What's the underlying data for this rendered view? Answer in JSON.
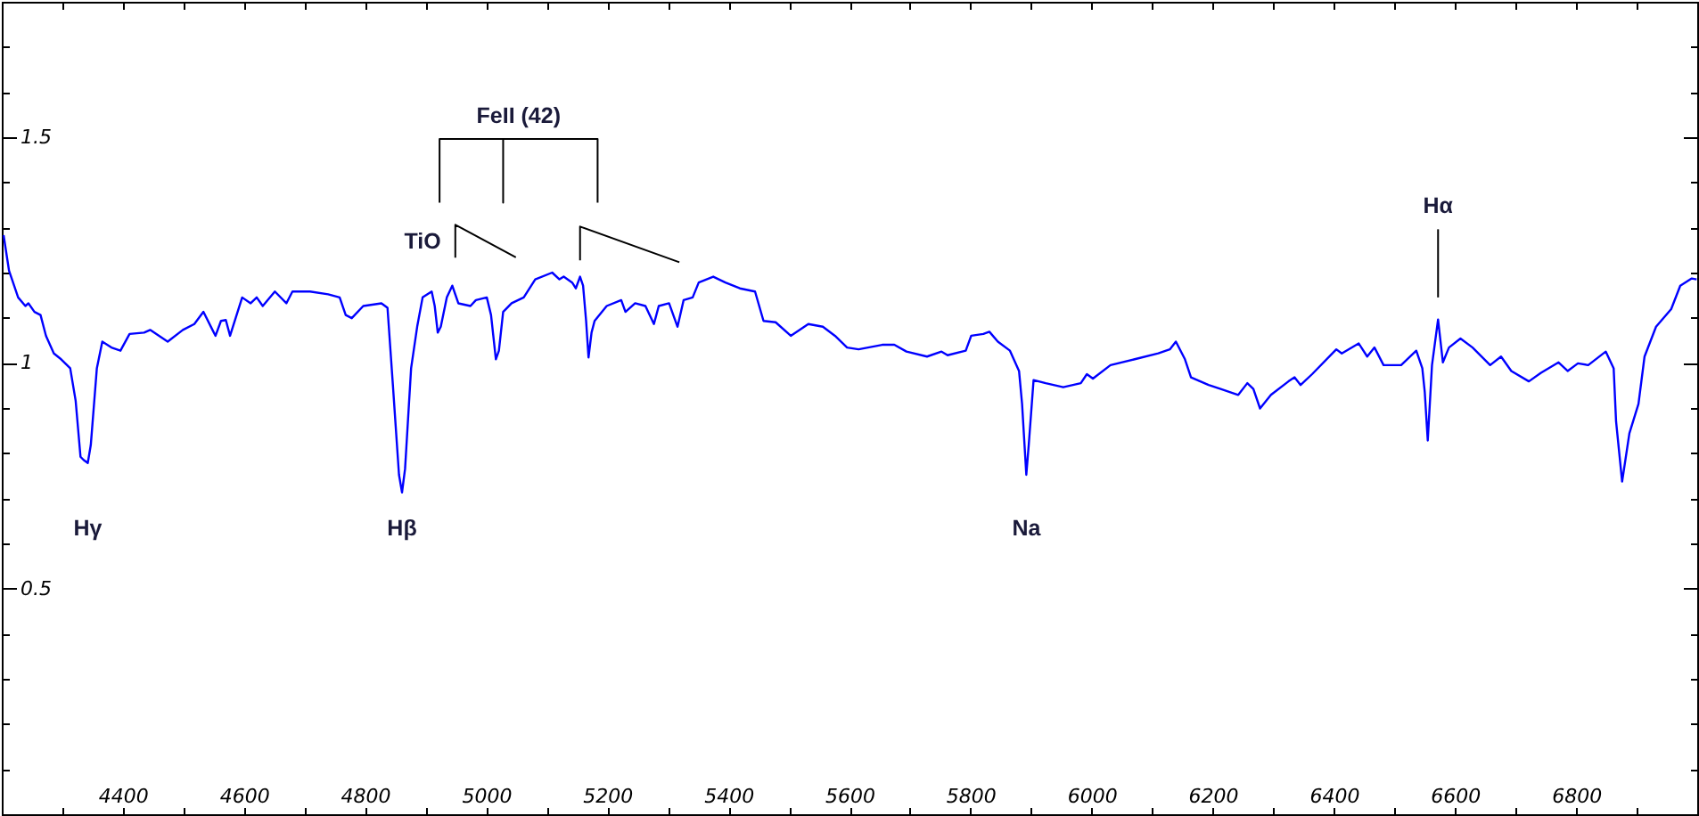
{
  "chart_data": {
    "type": "line",
    "xlim": [
      4200,
      7000
    ],
    "ylim": [
      0,
      1.8
    ],
    "xticks": [
      {
        "value": 4300,
        "label": null
      },
      4400,
      {
        "value": 4500,
        "label": null
      },
      4600,
      {
        "value": 4700,
        "label": null
      },
      4800,
      {
        "value": 4900,
        "label": null
      },
      5000,
      {
        "value": 5100,
        "label": null
      },
      5200,
      {
        "value": 5300,
        "label": null
      },
      5400,
      {
        "value": 5500,
        "label": null
      },
      5600,
      {
        "value": 5700,
        "label": null
      },
      5800,
      {
        "value": 5900,
        "label": null
      },
      6000,
      {
        "value": 6100,
        "label": null
      },
      6200,
      {
        "value": 6300,
        "label": null
      },
      6400,
      {
        "value": 6500,
        "label": null
      },
      6600,
      {
        "value": 6700,
        "label": null
      },
      6800,
      {
        "value": 6900,
        "label": null
      }
    ],
    "yticks": [
      {
        "value": 0.1,
        "label": null
      },
      {
        "value": 0.2,
        "label": null
      },
      {
        "value": 0.3,
        "label": null
      },
      {
        "value": 0.4,
        "label": null
      },
      0.5,
      {
        "value": 0.6,
        "label": null
      },
      {
        "value": 0.7,
        "label": null
      },
      {
        "value": 0.8,
        "label": null
      },
      {
        "value": 0.9,
        "label": null
      },
      1,
      {
        "value": 1.1,
        "label": null
      },
      {
        "value": 1.2,
        "label": null
      },
      {
        "value": 1.3,
        "label": null
      },
      {
        "value": 1.4,
        "label": null
      },
      1.5,
      {
        "value": 1.6,
        "label": null
      },
      {
        "value": 1.7,
        "label": null
      }
    ],
    "annotations": [
      {
        "text": "FeII (42)",
        "x": 5028,
        "y": 1.496
      },
      {
        "text": "TiO",
        "x": 4949,
        "y": 1.306
      },
      {
        "text": "Hα",
        "x": 6572,
        "y": 1.296
      },
      {
        "text": "Hγ",
        "x": 4342,
        "y": 0.778
      },
      {
        "text": "Hβ",
        "x": 4861,
        "y": 0.713
      },
      {
        "text": "Na",
        "x": 5892,
        "y": 0.752
      }
    ],
    "series": [
      {
        "color": "#0000ff",
        "x": [
          4203,
          4212,
          4227,
          4239,
          4244,
          4254,
          4264,
          4273,
          4286,
          4298,
          4313,
          4322,
          4330,
          4335,
          4342,
          4347,
          4357,
          4366,
          4381,
          4396,
          4411,
          4435,
          4445,
          4474,
          4499,
          4518,
          4533,
          4548,
          4553,
          4562,
          4570,
          4577,
          4597,
          4611,
          4621,
          4631,
          4651,
          4670,
          4680,
          4709,
          4739,
          4758,
          4768,
          4778,
          4797,
          4827,
          4837,
          4846,
          4856,
          4861,
          4866,
          4876,
          4886,
          4895,
          4910,
          4915,
          4920,
          4925,
          4935,
          4944,
          4954,
          4974,
          4983,
          5001,
          5008,
          5016,
          5021,
          5028,
          5042,
          5062,
          5081,
          5109,
          5121,
          5128,
          5142,
          5148,
          5155,
          5160,
          5165,
          5169,
          5174,
          5179,
          5199,
          5223,
          5230,
          5246,
          5263,
          5277,
          5285,
          5302,
          5316,
          5326,
          5341,
          5351,
          5375,
          5395,
          5419,
          5444,
          5458,
          5478,
          5503,
          5532,
          5556,
          5576,
          5596,
          5615,
          5654,
          5674,
          5694,
          5728,
          5752,
          5762,
          5792,
          5801,
          5821,
          5831,
          5845,
          5865,
          5880,
          5885,
          5892,
          5896,
          5904,
          5924,
          5953,
          5982,
          5992,
          6002,
          6031,
          6071,
          6110,
          6129,
          6139,
          6154,
          6164,
          6193,
          6213,
          6242,
          6257,
          6267,
          6278,
          6296,
          6325,
          6335,
          6345,
          6364,
          6404,
          6413,
          6441,
          6455,
          6467,
          6482,
          6511,
          6536,
          6546,
          6550,
          6555,
          6562,
          6572,
          6580,
          6590,
          6609,
          6629,
          6658,
          6676,
          6693,
          6722,
          6742,
          6771,
          6786,
          6803,
          6820,
          6849,
          6862,
          6866,
          6876,
          6888,
          6903,
          6913,
          6932,
          6957,
          6972,
          6991,
          6999
        ],
        "values": [
          1.283,
          1.204,
          1.145,
          1.126,
          1.132,
          1.113,
          1.106,
          1.06,
          1.021,
          1.008,
          0.988,
          0.916,
          0.792,
          0.785,
          0.778,
          0.818,
          0.988,
          1.047,
          1.034,
          1.027,
          1.064,
          1.067,
          1.073,
          1.047,
          1.073,
          1.086,
          1.113,
          1.073,
          1.06,
          1.093,
          1.095,
          1.06,
          1.145,
          1.132,
          1.145,
          1.126,
          1.158,
          1.132,
          1.158,
          1.158,
          1.152,
          1.145,
          1.106,
          1.099,
          1.126,
          1.132,
          1.122,
          0.949,
          0.752,
          0.713,
          0.765,
          0.988,
          1.08,
          1.145,
          1.158,
          1.126,
          1.067,
          1.08,
          1.145,
          1.171,
          1.132,
          1.126,
          1.139,
          1.145,
          1.106,
          1.008,
          1.027,
          1.113,
          1.132,
          1.145,
          1.185,
          1.2,
          1.185,
          1.191,
          1.178,
          1.165,
          1.191,
          1.171,
          1.093,
          1.012,
          1.067,
          1.093,
          1.126,
          1.139,
          1.113,
          1.132,
          1.126,
          1.086,
          1.126,
          1.132,
          1.08,
          1.139,
          1.145,
          1.178,
          1.191,
          1.178,
          1.165,
          1.158,
          1.093,
          1.09,
          1.06,
          1.086,
          1.08,
          1.06,
          1.034,
          1.03,
          1.04,
          1.04,
          1.025,
          1.014,
          1.025,
          1.017,
          1.027,
          1.06,
          1.064,
          1.069,
          1.047,
          1.027,
          0.982,
          0.909,
          0.752,
          0.818,
          0.962,
          0.955,
          0.946,
          0.955,
          0.975,
          0.965,
          0.995,
          1.008,
          1.021,
          1.03,
          1.047,
          1.008,
          0.968,
          0.951,
          0.942,
          0.929,
          0.955,
          0.942,
          0.899,
          0.929,
          0.959,
          0.968,
          0.951,
          0.975,
          1.03,
          1.021,
          1.043,
          1.014,
          1.034,
          0.995,
          0.995,
          1.027,
          0.988,
          0.936,
          0.828,
          0.995,
          1.096,
          1.001,
          1.034,
          1.054,
          1.034,
          0.995,
          1.014,
          0.982,
          0.959,
          0.978,
          1.001,
          0.982,
          0.999,
          0.995,
          1.025,
          0.988,
          0.87,
          0.737,
          0.844,
          0.909,
          1.014,
          1.08,
          1.119,
          1.171,
          1.187,
          1.185
        ]
      },
      {
        "color": "#000000",
        "x": [
          4923,
          4923,
          5028,
          5028,
          5028,
          5184,
          5184
        ],
        "values": [
          1.355,
          1.496,
          1.496,
          1.355,
          1.496,
          1.496,
          1.355
        ]
      },
      {
        "color": "#000000",
        "x": [
          4949,
          4949,
          5049
        ],
        "values": [
          1.233,
          1.306,
          1.234
        ]
      },
      {
        "color": "#000000",
        "x": [
          5155,
          5155,
          5319
        ],
        "values": [
          1.227,
          1.302,
          1.223
        ]
      },
      {
        "color": "#000000",
        "x": [
          6572,
          6572
        ],
        "values": [
          1.145,
          1.296
        ]
      }
    ]
  }
}
